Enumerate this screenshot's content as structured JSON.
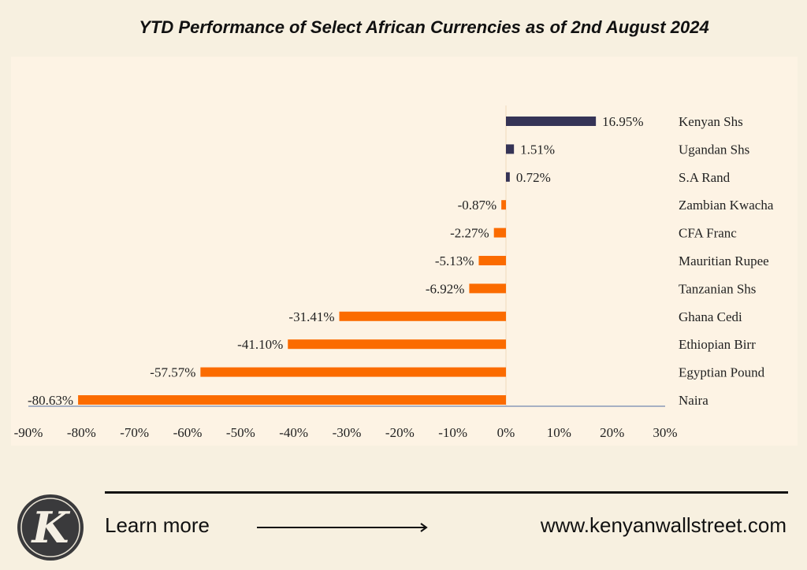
{
  "chart_data": {
    "type": "bar",
    "orientation": "horizontal",
    "title": "YTD Performance of Select African Currencies as of 2nd August 2024",
    "categories": [
      "Kenyan Shs",
      "Ugandan Shs",
      "S.A Rand",
      "Zambian Kwacha",
      "CFA Franc",
      "Mauritian Rupee",
      "Tanzanian Shs",
      "Ghana Cedi",
      "Ethiopian Birr",
      "Egyptian Pound",
      "Naira"
    ],
    "values": [
      16.95,
      1.51,
      0.72,
      -0.87,
      -2.27,
      -5.13,
      -6.92,
      -31.41,
      -41.1,
      -57.57,
      -80.63
    ],
    "data_labels": [
      "16.95%",
      "1.51%",
      "0.72%",
      "-0.87%",
      "-2.27%",
      "-5.13%",
      "-6.92%",
      "-31.41%",
      "-41.10%",
      "-57.57%",
      "-80.63%"
    ],
    "xlim": [
      -90,
      30
    ],
    "x_ticks": [
      -90,
      -80,
      -70,
      -60,
      -50,
      -40,
      -30,
      -20,
      -10,
      0,
      10,
      20,
      30
    ],
    "x_tick_labels": [
      "-90%",
      "-80%",
      "-70%",
      "-60%",
      "-50%",
      "-40%",
      "-30%",
      "-20%",
      "-10%",
      "0%",
      "10%",
      "20%",
      "30%"
    ],
    "xlabel": "",
    "ylabel": "",
    "grid": false,
    "colors": {
      "positive": "#353356",
      "negative": "#fb6b00"
    }
  },
  "footer": {
    "learn_more": "Learn more",
    "url": "www.kenyanwallstreet.com",
    "logo_letter": "K"
  }
}
